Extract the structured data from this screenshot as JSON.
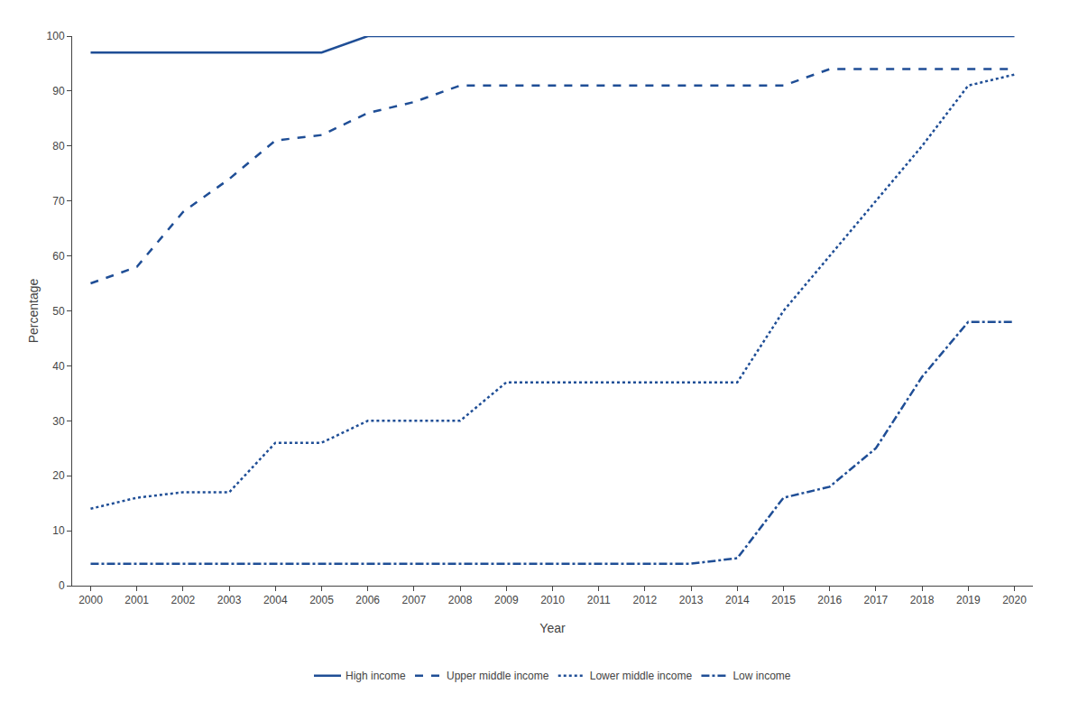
{
  "chart_data": {
    "type": "line",
    "x": [
      2000,
      2001,
      2002,
      2003,
      2004,
      2005,
      2006,
      2007,
      2008,
      2009,
      2010,
      2011,
      2012,
      2013,
      2014,
      2015,
      2016,
      2017,
      2018,
      2019,
      2020
    ],
    "series": [
      {
        "name": "High income",
        "color": "#1f4e96",
        "line_style": "solid",
        "values": [
          97,
          97,
          97,
          97,
          97,
          97,
          100,
          100,
          100,
          100,
          100,
          100,
          100,
          100,
          100,
          100,
          100,
          100,
          100,
          100,
          100
        ]
      },
      {
        "name": "Upper middle income",
        "color": "#1f4e96",
        "line_style": "dash",
        "values": [
          55,
          58,
          68,
          74,
          81,
          82,
          86,
          88,
          91,
          91,
          91,
          91,
          91,
          91,
          91,
          91,
          94,
          94,
          94,
          94,
          94
        ]
      },
      {
        "name": "Lower middle income",
        "color": "#1f4e96",
        "line_style": "dot",
        "values": [
          14,
          16,
          17,
          17,
          26,
          26,
          30,
          30,
          30,
          37,
          37,
          37,
          37,
          37,
          37,
          50,
          60,
          70,
          80,
          91,
          93
        ]
      },
      {
        "name": "Low income",
        "color": "#1f4e96",
        "line_style": "dashdot",
        "values": [
          4,
          4,
          4,
          4,
          4,
          4,
          4,
          4,
          4,
          4,
          4,
          4,
          4,
          4,
          5,
          16,
          18,
          25,
          38,
          48,
          48
        ]
      }
    ],
    "xlabel": "Year",
    "ylabel": "Percentage",
    "xlim": [
      1999.6,
      2020.4
    ],
    "xticks": [
      2000,
      2001,
      2002,
      2003,
      2004,
      2005,
      2006,
      2007,
      2008,
      2009,
      2010,
      2011,
      2012,
      2013,
      2014,
      2015,
      2016,
      2017,
      2018,
      2019,
      2020
    ],
    "ylim": [
      0,
      100
    ],
    "yticks": [
      0,
      10,
      20,
      30,
      40,
      50,
      60,
      70,
      80,
      90,
      100
    ],
    "grid": false,
    "legend": "bottom"
  }
}
